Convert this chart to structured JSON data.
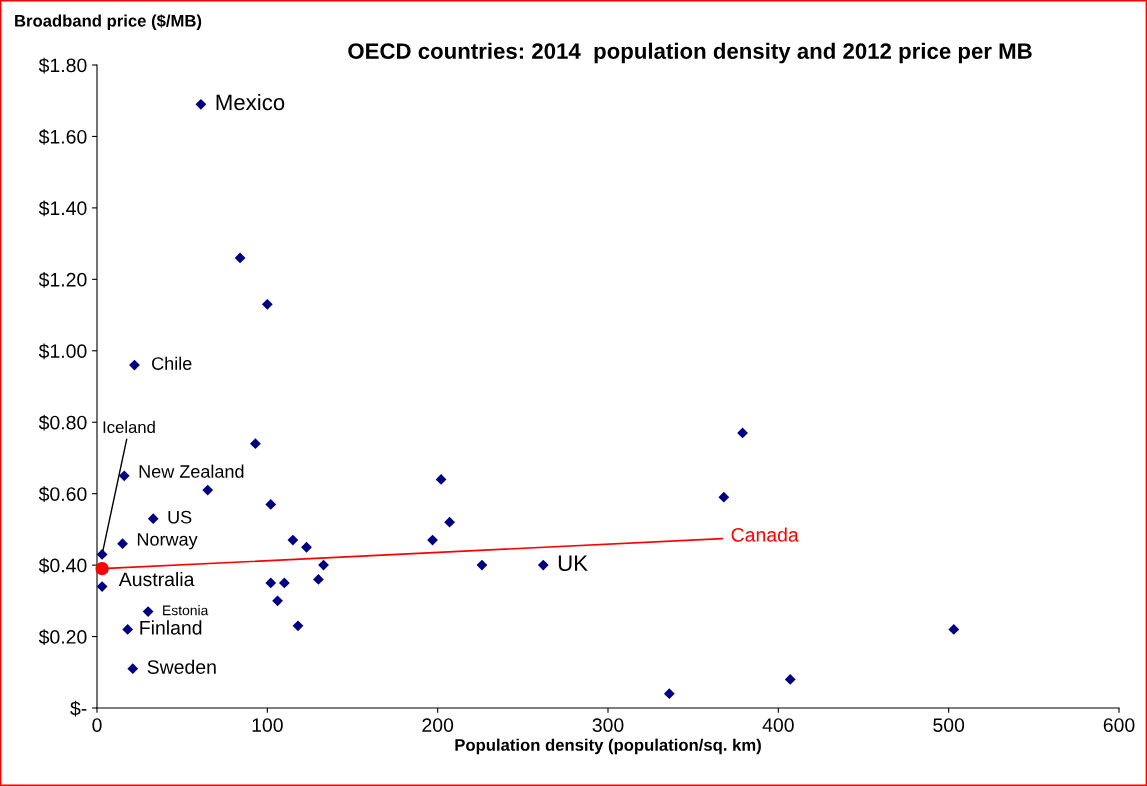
{
  "chart_data": {
    "type": "scatter",
    "title": "OECD countries: 2014  population density and 2012 price per MB",
    "xlabel": "Population density (population/sq. km)",
    "ylabel": "Broadband price ($/MB)",
    "xlim": [
      0,
      600
    ],
    "xticks": [
      0,
      100,
      200,
      300,
      400,
      500,
      600
    ],
    "ylim": [
      0,
      1.8
    ],
    "yticks": [
      {
        "value": 0,
        "label": "$-"
      },
      {
        "value": 0.2,
        "label": "$0.20"
      },
      {
        "value": 0.4,
        "label": "$0.40"
      },
      {
        "value": 0.6,
        "label": "$0.60"
      },
      {
        "value": 0.8,
        "label": "$0.80"
      },
      {
        "value": 1.0,
        "label": "$1.00"
      },
      {
        "value": 1.2,
        "label": "$1.20"
      },
      {
        "value": 1.4,
        "label": "$1.40"
      },
      {
        "value": 1.6,
        "label": "$1.60"
      },
      {
        "value": 1.8,
        "label": "$1.80"
      }
    ],
    "marker": "diamond",
    "grid": false,
    "legend": false,
    "series": [
      {
        "color": "#000080",
        "x": [
          61,
          84,
          100,
          22,
          93,
          202,
          379,
          368,
          16,
          65,
          102,
          33,
          15,
          3,
          115,
          123,
          197,
          207,
          133,
          130,
          102,
          110,
          106,
          118,
          226,
          262,
          3,
          30,
          18,
          21,
          336,
          407,
          503
        ],
        "values": [
          1.69,
          1.26,
          1.13,
          0.96,
          0.74,
          0.64,
          0.77,
          0.59,
          0.65,
          0.61,
          0.57,
          0.53,
          0.46,
          0.43,
          0.47,
          0.45,
          0.47,
          0.52,
          0.4,
          0.36,
          0.35,
          0.35,
          0.3,
          0.23,
          0.4,
          0.4,
          0.34,
          0.27,
          0.22,
          0.11,
          0.04,
          0.08,
          0.22
        ]
      },
      {
        "name": "Canada",
        "color": "#ff0000",
        "marker": "circle",
        "x": [
          3
        ],
        "values": [
          0.39
        ]
      }
    ],
    "annotations": [
      {
        "text": "Mexico",
        "x": 61,
        "y": 1.69
      },
      {
        "text": "Chile",
        "x": 22,
        "y": 0.96
      },
      {
        "text": "Iceland",
        "x": 3,
        "y": 0.43
      },
      {
        "text": "New Zealand",
        "x": 16,
        "y": 0.65
      },
      {
        "text": "US",
        "x": 33,
        "y": 0.53
      },
      {
        "text": "Norway",
        "x": 15,
        "y": 0.46
      },
      {
        "text": "Australia",
        "x": 3,
        "y": 0.34
      },
      {
        "text": "Estonia",
        "x": 30,
        "y": 0.27
      },
      {
        "text": "Finland",
        "x": 18,
        "y": 0.22
      },
      {
        "text": "Sweden",
        "x": 21,
        "y": 0.11
      },
      {
        "text": "UK",
        "x": 262,
        "y": 0.4
      }
    ]
  }
}
